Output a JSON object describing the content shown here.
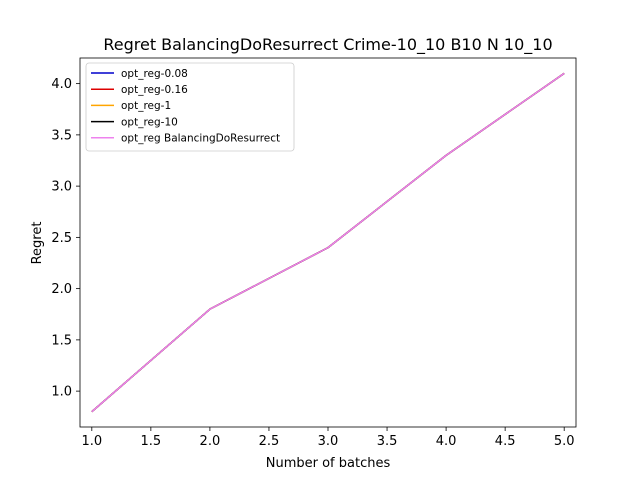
{
  "chart_data": {
    "type": "line",
    "title": "Regret BalancingDoResurrect Crime-10_10 B10 N 10_10",
    "xlabel": "Number of batches",
    "ylabel": "Regret",
    "xlim": [
      0.9,
      5.1
    ],
    "ylim": [
      0.65,
      4.25
    ],
    "xticks": [
      1.0,
      1.5,
      2.0,
      2.5,
      3.0,
      3.5,
      4.0,
      4.5,
      5.0
    ],
    "xtick_labels": [
      "1.0",
      "1.5",
      "2.0",
      "2.5",
      "3.0",
      "3.5",
      "4.0",
      "4.5",
      "5.0"
    ],
    "yticks": [
      1.0,
      1.5,
      2.0,
      2.5,
      3.0,
      3.5,
      4.0
    ],
    "ytick_labels": [
      "1.0",
      "1.5",
      "2.0",
      "2.5",
      "3.0",
      "3.5",
      "4.0"
    ],
    "x": [
      1,
      2,
      3,
      4,
      5
    ],
    "grid": false,
    "legend_position": "top-left",
    "series": [
      {
        "name": "opt_reg-0.08",
        "color": "#0000cc",
        "values": [
          0.8,
          1.8,
          2.4,
          3.3,
          4.1
        ]
      },
      {
        "name": "opt_reg-0.16",
        "color": "#dd0000",
        "values": [
          0.8,
          1.8,
          2.4,
          3.3,
          4.1
        ]
      },
      {
        "name": "opt_reg-1",
        "color": "#ffa500",
        "values": [
          0.8,
          1.8,
          2.4,
          3.3,
          4.1
        ]
      },
      {
        "name": "opt_reg-10",
        "color": "#000000",
        "values": [
          0.8,
          1.8,
          2.4,
          3.3,
          4.1
        ]
      },
      {
        "name": "opt_reg BalancingDoResurrect",
        "color": "#ee82ee",
        "values": [
          0.8,
          1.8,
          2.4,
          3.3,
          4.1
        ]
      }
    ]
  }
}
